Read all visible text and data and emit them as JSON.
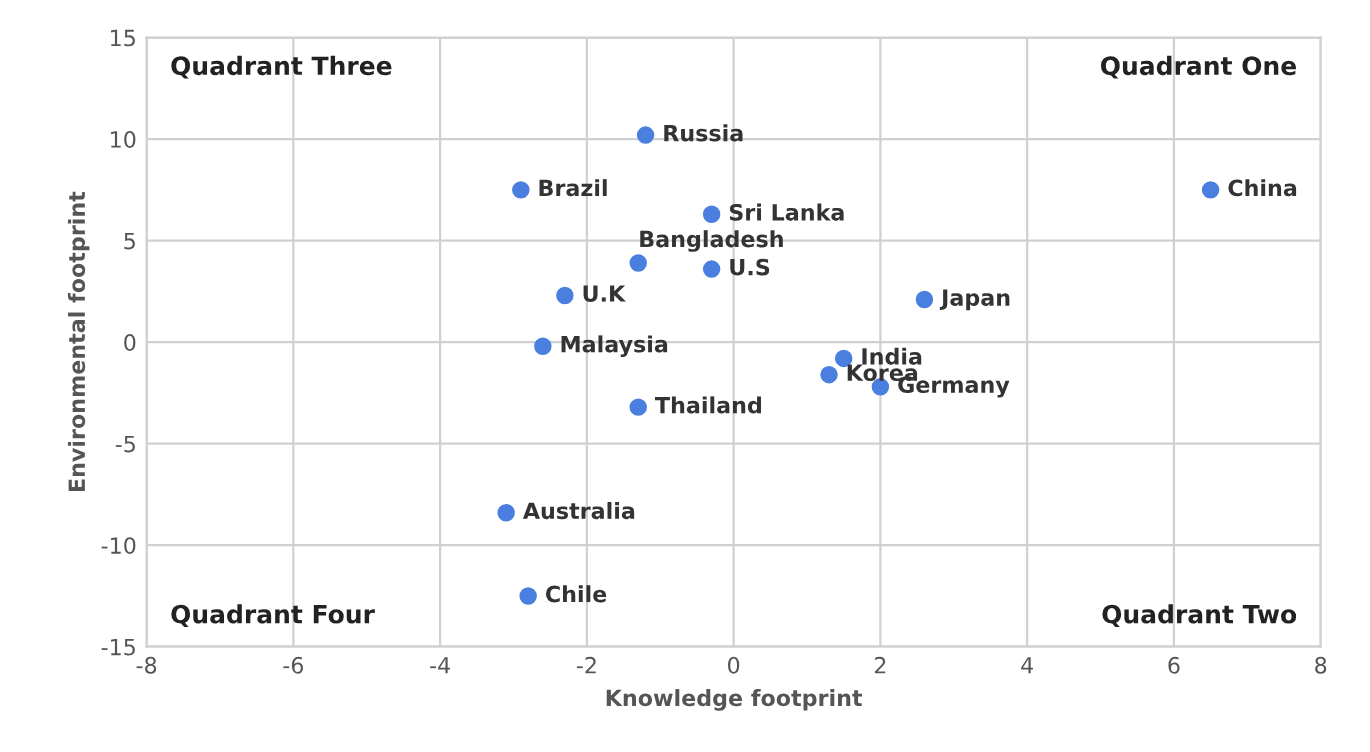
{
  "chart_data": {
    "type": "scatter",
    "xlabel": "Knowledge footprint",
    "ylabel": "Environmental footprint",
    "xlim": [
      -8,
      8
    ],
    "xticks": [
      -8,
      -6,
      -4,
      -2,
      0,
      2,
      4,
      6,
      8
    ],
    "ylim": [
      -15,
      15
    ],
    "yticks": [
      -15,
      -10,
      -5,
      0,
      5,
      10,
      15
    ],
    "grid": true,
    "marker": "circle",
    "series": [
      {
        "color": "#4a7fe0",
        "x": [
          -1.2,
          -2.9,
          -0.3,
          6.5,
          -1.3,
          -0.3,
          2.6,
          -2.3,
          1.5,
          -2.6,
          1.3,
          2.0,
          -1.3,
          -3.1,
          -2.8
        ],
        "values": [
          10.2,
          7.5,
          6.3,
          7.5,
          3.9,
          3.6,
          2.1,
          2.3,
          -0.8,
          -0.2,
          -1.6,
          -2.2,
          -3.2,
          -8.4,
          -12.5
        ]
      }
    ],
    "annotations": [
      "Quadrant Three",
      "Quadrant One",
      "Quadrant Four",
      "Quadrant Two",
      {
        "text": "Russia",
        "x": -1.2,
        "y": 10.2
      },
      {
        "text": "Brazil",
        "x": -2.9,
        "y": 7.5
      },
      {
        "text": "Sri Lanka",
        "x": -0.3,
        "y": 6.3
      },
      {
        "text": "China",
        "x": 6.5,
        "y": 7.5
      },
      {
        "text": "Bangladesh",
        "x": -1.3,
        "y": 3.9
      },
      {
        "text": "U.S",
        "x": -0.3,
        "y": 3.6
      },
      {
        "text": "Japan",
        "x": 2.6,
        "y": 2.1
      },
      {
        "text": "U.K",
        "x": -2.3,
        "y": 2.3
      },
      {
        "text": "India",
        "x": 1.5,
        "y": -0.8
      },
      {
        "text": "Malaysia",
        "x": -2.6,
        "y": -0.2
      },
      {
        "text": "Korea",
        "x": 1.3,
        "y": -1.6
      },
      {
        "text": "Germany",
        "x": 2.0,
        "y": -2.2
      },
      {
        "text": "Thailand",
        "x": -1.3,
        "y": -3.2
      },
      {
        "text": "Australia",
        "x": -3.1,
        "y": -8.4
      },
      {
        "text": "Chile",
        "x": -2.8,
        "y": -12.5
      }
    ]
  }
}
